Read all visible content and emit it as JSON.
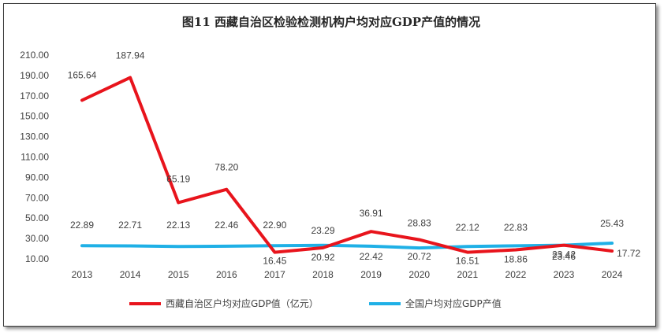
{
  "chart_data": {
    "type": "line",
    "title": "图11   西藏自治区检验检测机构户均对应GDP产值的情况",
    "categories": [
      "2013",
      "2014",
      "2015",
      "2016",
      "2017",
      "2018",
      "2019",
      "2020",
      "2021",
      "2022",
      "2023",
      "2024"
    ],
    "y_ticks": [
      "210.00",
      "190.00",
      "170.00",
      "150.00",
      "130.00",
      "110.00",
      "90.00",
      "70.00",
      "50.00",
      "30.00",
      "10.00"
    ],
    "ylim": [
      10,
      210
    ],
    "series": [
      {
        "name": "西藏自治区户均对应GDP值（亿元）",
        "color": "#e8141c",
        "values": [
          165.64,
          187.94,
          65.19,
          78.2,
          16.45,
          20.92,
          36.91,
          28.83,
          16.51,
          18.86,
          23.42,
          17.72
        ],
        "labels": [
          "165.64",
          "187.94",
          "65.19",
          "78.20",
          "16.45",
          "20.92",
          "36.91",
          "28.83",
          "16.51",
          "18.86",
          "23.42",
          "17.72"
        ]
      },
      {
        "name": "全国户均对应GDP产值",
        "color": "#1fb0e6",
        "values": [
          22.89,
          22.71,
          22.13,
          22.46,
          22.9,
          23.29,
          22.42,
          20.72,
          22.12,
          22.83,
          23.46,
          25.43
        ],
        "labels": [
          "22.89",
          "22.71",
          "22.13",
          "22.46",
          "22.90",
          "23.29",
          "22.42",
          "20.72",
          "22.12",
          "22.83",
          "23.46",
          "25.43"
        ]
      }
    ]
  }
}
